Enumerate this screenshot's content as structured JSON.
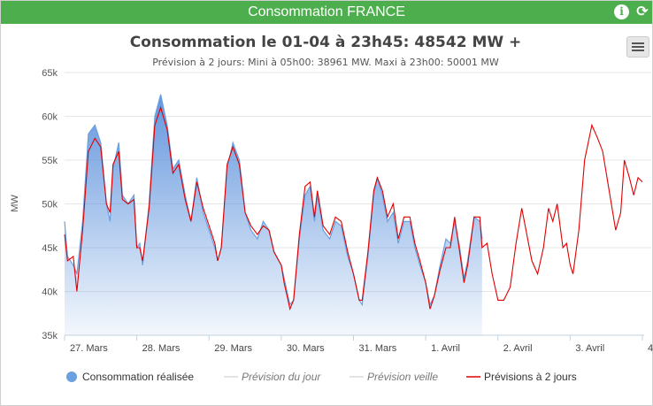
{
  "panel": {
    "title": "Consommation FRANCE",
    "info_icon": "info-icon",
    "refresh_icon": "refresh-icon",
    "menu_icon": "hamburger-menu-icon"
  },
  "chart_data": {
    "type": "area",
    "title": "Consommation le 01-04 à 23h45: 48542 MW +",
    "subtitle": "Prévision à 2 jours: Mini à 05h00: 38961 MW. Maxi à 23h00: 50001 MW",
    "ylabel": "MW",
    "ylim": [
      35000,
      65000
    ],
    "yticks": [
      {
        "value": 35000,
        "label": "35k"
      },
      {
        "value": 40000,
        "label": "40k"
      },
      {
        "value": 45000,
        "label": "45k"
      },
      {
        "value": 50000,
        "label": "50k"
      },
      {
        "value": 55000,
        "label": "55k"
      },
      {
        "value": 60000,
        "label": "60k"
      },
      {
        "value": 65000,
        "label": "65k"
      }
    ],
    "xlim": [
      0,
      8
    ],
    "xticks": [
      {
        "value": 0,
        "label": "27. Mars"
      },
      {
        "value": 1,
        "label": "28. Mars"
      },
      {
        "value": 2,
        "label": "29. Mars"
      },
      {
        "value": 3,
        "label": "30. Mars"
      },
      {
        "value": 4,
        "label": "31. Mars"
      },
      {
        "value": 5,
        "label": "1. Avril"
      },
      {
        "value": 6,
        "label": "2. Avril"
      },
      {
        "value": 7,
        "label": "3. Avril"
      },
      {
        "value": 8,
        "label": "4"
      }
    ],
    "grid": true,
    "legend_position": "bottom",
    "series": [
      {
        "name": "Consommation réalisée",
        "kind": "area",
        "color": "#6a9fe0",
        "points": [
          [
            0.0,
            48000
          ],
          [
            0.04,
            44000
          ],
          [
            0.12,
            43000
          ],
          [
            0.17,
            42000
          ],
          [
            0.25,
            48000
          ],
          [
            0.33,
            58000
          ],
          [
            0.42,
            59000
          ],
          [
            0.5,
            57000
          ],
          [
            0.58,
            50000
          ],
          [
            0.63,
            48000
          ],
          [
            0.67,
            54000
          ],
          [
            0.75,
            57000
          ],
          [
            0.8,
            51000
          ],
          [
            0.88,
            50000
          ],
          [
            0.96,
            51000
          ],
          [
            1.0,
            45000
          ],
          [
            1.04,
            45500
          ],
          [
            1.08,
            43000
          ],
          [
            1.17,
            50000
          ],
          [
            1.25,
            60000
          ],
          [
            1.33,
            62500
          ],
          [
            1.42,
            59000
          ],
          [
            1.5,
            54000
          ],
          [
            1.58,
            55000
          ],
          [
            1.67,
            51000
          ],
          [
            1.75,
            48000
          ],
          [
            1.83,
            53000
          ],
          [
            1.92,
            49000
          ],
          [
            2.0,
            47000
          ],
          [
            2.08,
            45000
          ],
          [
            2.12,
            43500
          ],
          [
            2.17,
            45000
          ],
          [
            2.25,
            54000
          ],
          [
            2.33,
            57000
          ],
          [
            2.42,
            55000
          ],
          [
            2.5,
            49000
          ],
          [
            2.58,
            47000
          ],
          [
            2.67,
            46000
          ],
          [
            2.75,
            48000
          ],
          [
            2.83,
            47000
          ],
          [
            2.9,
            44500
          ],
          [
            3.0,
            43000
          ],
          [
            3.04,
            41500
          ],
          [
            3.12,
            38500
          ],
          [
            3.17,
            39000
          ],
          [
            3.25,
            46000
          ],
          [
            3.33,
            51000
          ],
          [
            3.4,
            52000
          ],
          [
            3.46,
            48000
          ],
          [
            3.5,
            51000
          ],
          [
            3.58,
            47000
          ],
          [
            3.67,
            46000
          ],
          [
            3.75,
            48000
          ],
          [
            3.83,
            47500
          ],
          [
            3.92,
            44000
          ],
          [
            4.0,
            42000
          ],
          [
            4.08,
            39000
          ],
          [
            4.12,
            38500
          ],
          [
            4.2,
            44000
          ],
          [
            4.28,
            51000
          ],
          [
            4.33,
            53000
          ],
          [
            4.4,
            51000
          ],
          [
            4.47,
            48000
          ],
          [
            4.55,
            49000
          ],
          [
            4.62,
            45500
          ],
          [
            4.7,
            48000
          ],
          [
            4.78,
            48000
          ],
          [
            4.85,
            45000
          ],
          [
            4.92,
            43000
          ],
          [
            5.0,
            41000
          ],
          [
            5.06,
            38500
          ],
          [
            5.12,
            39500
          ],
          [
            5.2,
            43000
          ],
          [
            5.28,
            46000
          ],
          [
            5.34,
            45500
          ],
          [
            5.4,
            48000
          ],
          [
            5.47,
            45000
          ],
          [
            5.53,
            41500
          ],
          [
            5.58,
            43500
          ],
          [
            5.67,
            48500
          ],
          [
            5.75,
            48000
          ],
          [
            5.78,
            46000
          ]
        ]
      },
      {
        "name": "Prévision du jour",
        "kind": "legend-only",
        "color": "#c8c8c8",
        "points": []
      },
      {
        "name": "Prévision veille",
        "kind": "legend-only",
        "color": "#c8c8c8",
        "points": []
      },
      {
        "name": "Prévisions à 2 jours",
        "kind": "line",
        "color": "#e00000",
        "points": [
          [
            0.0,
            46500
          ],
          [
            0.04,
            43500
          ],
          [
            0.12,
            44000
          ],
          [
            0.17,
            40000
          ],
          [
            0.25,
            47000
          ],
          [
            0.33,
            56000
          ],
          [
            0.42,
            57500
          ],
          [
            0.5,
            56500
          ],
          [
            0.58,
            50000
          ],
          [
            0.63,
            49000
          ],
          [
            0.67,
            54500
          ],
          [
            0.75,
            56000
          ],
          [
            0.8,
            50500
          ],
          [
            0.88,
            50000
          ],
          [
            0.96,
            50500
          ],
          [
            1.0,
            45000
          ],
          [
            1.04,
            45000
          ],
          [
            1.08,
            43500
          ],
          [
            1.17,
            49500
          ],
          [
            1.25,
            59000
          ],
          [
            1.33,
            61000
          ],
          [
            1.42,
            58500
          ],
          [
            1.5,
            53500
          ],
          [
            1.58,
            54500
          ],
          [
            1.67,
            50500
          ],
          [
            1.75,
            48000
          ],
          [
            1.83,
            52500
          ],
          [
            1.92,
            49500
          ],
          [
            2.0,
            47500
          ],
          [
            2.08,
            45500
          ],
          [
            2.12,
            43500
          ],
          [
            2.17,
            45000
          ],
          [
            2.25,
            54500
          ],
          [
            2.33,
            56500
          ],
          [
            2.42,
            54500
          ],
          [
            2.5,
            49000
          ],
          [
            2.58,
            47500
          ],
          [
            2.67,
            46500
          ],
          [
            2.75,
            47500
          ],
          [
            2.83,
            47000
          ],
          [
            2.9,
            44500
          ],
          [
            3.0,
            43000
          ],
          [
            3.04,
            41000
          ],
          [
            3.12,
            38000
          ],
          [
            3.17,
            39000
          ],
          [
            3.25,
            46500
          ],
          [
            3.33,
            52000
          ],
          [
            3.4,
            52500
          ],
          [
            3.46,
            48500
          ],
          [
            3.5,
            51500
          ],
          [
            3.58,
            47500
          ],
          [
            3.67,
            46500
          ],
          [
            3.75,
            48500
          ],
          [
            3.83,
            48000
          ],
          [
            3.92,
            44500
          ],
          [
            4.0,
            42000
          ],
          [
            4.08,
            39000
          ],
          [
            4.12,
            39000
          ],
          [
            4.2,
            44500
          ],
          [
            4.28,
            51500
          ],
          [
            4.33,
            53000
          ],
          [
            4.4,
            51500
          ],
          [
            4.47,
            48500
          ],
          [
            4.55,
            50000
          ],
          [
            4.62,
            46000
          ],
          [
            4.7,
            48500
          ],
          [
            4.78,
            48500
          ],
          [
            4.85,
            45500
          ],
          [
            4.92,
            43500
          ],
          [
            5.0,
            41000
          ],
          [
            5.06,
            38000
          ],
          [
            5.12,
            39500
          ],
          [
            5.2,
            42500
          ],
          [
            5.28,
            45000
          ],
          [
            5.34,
            45000
          ],
          [
            5.4,
            48500
          ],
          [
            5.47,
            44500
          ],
          [
            5.53,
            41000
          ],
          [
            5.58,
            43000
          ],
          [
            5.67,
            48500
          ],
          [
            5.75,
            48500
          ],
          [
            5.78,
            45000
          ],
          [
            5.85,
            45500
          ],
          [
            5.92,
            42000
          ],
          [
            6.0,
            39000
          ],
          [
            6.08,
            39000
          ],
          [
            6.17,
            40500
          ],
          [
            6.25,
            45500
          ],
          [
            6.33,
            49500
          ],
          [
            6.4,
            46500
          ],
          [
            6.47,
            43500
          ],
          [
            6.55,
            42000
          ],
          [
            6.63,
            45000
          ],
          [
            6.7,
            49500
          ],
          [
            6.76,
            48000
          ],
          [
            6.82,
            50000
          ],
          [
            6.9,
            45000
          ],
          [
            6.95,
            45500
          ],
          [
            7.0,
            43000
          ],
          [
            7.04,
            42000
          ],
          [
            7.12,
            47000
          ],
          [
            7.2,
            55000
          ],
          [
            7.3,
            59000
          ],
          [
            7.38,
            57500
          ],
          [
            7.45,
            56000
          ],
          [
            7.55,
            51000
          ],
          [
            7.63,
            47000
          ],
          [
            7.7,
            49000
          ],
          [
            7.75,
            55000
          ],
          [
            7.82,
            53000
          ],
          [
            7.88,
            51000
          ],
          [
            7.94,
            53000
          ],
          [
            8.0,
            52500
          ]
        ]
      }
    ]
  }
}
